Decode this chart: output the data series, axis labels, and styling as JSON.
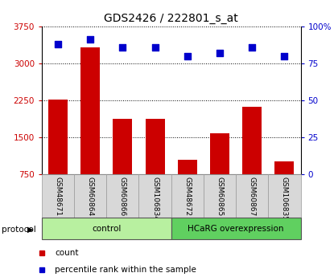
{
  "title": "GDS2426 / 222801_s_at",
  "samples": [
    "GSM48671",
    "GSM60864",
    "GSM60866",
    "GSM106834",
    "GSM48672",
    "GSM60865",
    "GSM60867",
    "GSM106835"
  ],
  "counts": [
    2270,
    3320,
    1870,
    1870,
    1050,
    1590,
    2120,
    1020
  ],
  "percentile_ranks": [
    88,
    91,
    86,
    86,
    80,
    82,
    86,
    80
  ],
  "groups": [
    {
      "label": "control",
      "color": "#b8f0a0",
      "span": [
        0,
        4
      ]
    },
    {
      "label": "HCaRG overexpression",
      "color": "#60d060",
      "span": [
        4,
        8
      ]
    }
  ],
  "ylim_left": [
    750,
    3750
  ],
  "ylim_right": [
    0,
    100
  ],
  "yticks_left": [
    750,
    1500,
    2250,
    3000,
    3750
  ],
  "yticks_right": [
    0,
    25,
    50,
    75,
    100
  ],
  "ytick_labels_right": [
    "0",
    "25",
    "50",
    "75",
    "100%"
  ],
  "bar_color": "#cc0000",
  "dot_color": "#0000cc",
  "grid_color": "#000000",
  "bg_color": "#ffffff",
  "tick_label_color_left": "#cc0000",
  "tick_label_color_right": "#0000cc",
  "legend_items": [
    {
      "label": "count",
      "color": "#cc0000"
    },
    {
      "label": "percentile rank within the sample",
      "color": "#0000cc"
    }
  ],
  "protocol_label": "protocol",
  "bar_width": 0.6,
  "dot_size": 40
}
